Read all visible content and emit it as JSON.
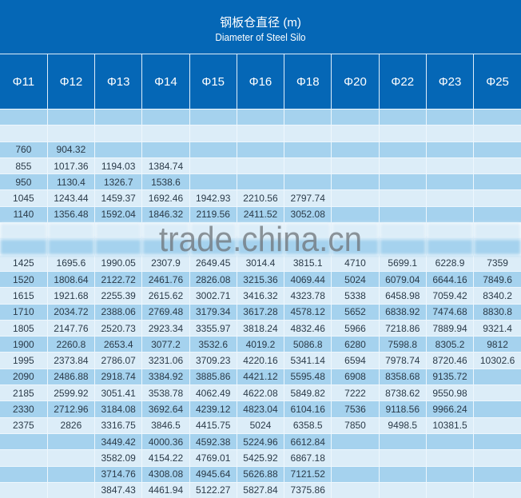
{
  "header": {
    "title_cn": "钢板仓直径 (m)",
    "title_en": "Diameter of Steel Silo"
  },
  "colors": {
    "header_bg": "#0567b6",
    "row_dark": "#a5d2ee",
    "row_light": "#dcedf8"
  },
  "columns": [
    "Φ11",
    "Φ12",
    "Φ13",
    "Φ14",
    "Φ15",
    "Φ16",
    "Φ18",
    "Φ20",
    "Φ22",
    "Φ23",
    "Φ25"
  ],
  "rows": [
    [
      "",
      "",
      "",
      "",
      "",
      "",
      "",
      "",
      "",
      "",
      ""
    ],
    [
      "",
      "",
      "",
      "",
      "",
      "",
      "",
      "",
      "",
      "",
      ""
    ],
    [
      "760",
      "904.32",
      "",
      "",
      "",
      "",
      "",
      "",
      "",
      "",
      ""
    ],
    [
      "855",
      "1017.36",
      "1194.03",
      "1384.74",
      "",
      "",
      "",
      "",
      "",
      "",
      ""
    ],
    [
      "950",
      "1130.4",
      "1326.7",
      "1538.6",
      "",
      "",
      "",
      "",
      "",
      "",
      ""
    ],
    [
      "1045",
      "1243.44",
      "1459.37",
      "1692.46",
      "1942.93",
      "2210.56",
      "2797.74",
      "",
      "",
      "",
      ""
    ],
    [
      "1140",
      "1356.48",
      "1592.04",
      "1846.32",
      "2119.56",
      "2411.52",
      "3052.08",
      "",
      "",
      "",
      ""
    ],
    [
      "",
      "",
      "",
      "",
      "",
      "",
      "",
      "",
      "",
      "",
      ""
    ],
    [
      "",
      "",
      "",
      "",
      "",
      "",
      "",
      "",
      "",
      "",
      ""
    ],
    [
      "1425",
      "1695.6",
      "1990.05",
      "2307.9",
      "2649.45",
      "3014.4",
      "3815.1",
      "4710",
      "5699.1",
      "6228.9",
      "7359"
    ],
    [
      "1520",
      "1808.64",
      "2122.72",
      "2461.76",
      "2826.08",
      "3215.36",
      "4069.44",
      "5024",
      "6079.04",
      "6644.16",
      "7849.6"
    ],
    [
      "1615",
      "1921.68",
      "2255.39",
      "2615.62",
      "3002.71",
      "3416.32",
      "4323.78",
      "5338",
      "6458.98",
      "7059.42",
      "8340.2"
    ],
    [
      "1710",
      "2034.72",
      "2388.06",
      "2769.48",
      "3179.34",
      "3617.28",
      "4578.12",
      "5652",
      "6838.92",
      "7474.68",
      "8830.8"
    ],
    [
      "1805",
      "2147.76",
      "2520.73",
      "2923.34",
      "3355.97",
      "3818.24",
      "4832.46",
      "5966",
      "7218.86",
      "7889.94",
      "9321.4"
    ],
    [
      "1900",
      "2260.8",
      "2653.4",
      "3077.2",
      "3532.6",
      "4019.2",
      "5086.8",
      "6280",
      "7598.8",
      "8305.2",
      "9812"
    ],
    [
      "1995",
      "2373.84",
      "2786.07",
      "3231.06",
      "3709.23",
      "4220.16",
      "5341.14",
      "6594",
      "7978.74",
      "8720.46",
      "10302.6"
    ],
    [
      "2090",
      "2486.88",
      "2918.74",
      "3384.92",
      "3885.86",
      "4421.12",
      "5595.48",
      "6908",
      "8358.68",
      "9135.72",
      ""
    ],
    [
      "2185",
      "2599.92",
      "3051.41",
      "3538.78",
      "4062.49",
      "4622.08",
      "5849.82",
      "7222",
      "8738.62",
      "9550.98",
      ""
    ],
    [
      "2330",
      "2712.96",
      "3184.08",
      "3692.64",
      "4239.12",
      "4823.04",
      "6104.16",
      "7536",
      "9118.56",
      "9966.24",
      ""
    ],
    [
      "2375",
      "2826",
      "3316.75",
      "3846.5",
      "4415.75",
      "5024",
      "6358.5",
      "7850",
      "9498.5",
      "10381.5",
      ""
    ],
    [
      "",
      "",
      "3449.42",
      "4000.36",
      "4592.38",
      "5224.96",
      "6612.84",
      "",
      "",
      "",
      ""
    ],
    [
      "",
      "",
      "3582.09",
      "4154.22",
      "4769.01",
      "5425.92",
      "6867.18",
      "",
      "",
      "",
      ""
    ],
    [
      "",
      "",
      "3714.76",
      "4308.08",
      "4945.64",
      "5626.88",
      "7121.52",
      "",
      "",
      "",
      ""
    ],
    [
      "",
      "",
      "3847.43",
      "4461.94",
      "5122.27",
      "5827.84",
      "7375.86",
      "",
      "",
      "",
      ""
    ]
  ],
  "watermark": "trade.china.cn"
}
